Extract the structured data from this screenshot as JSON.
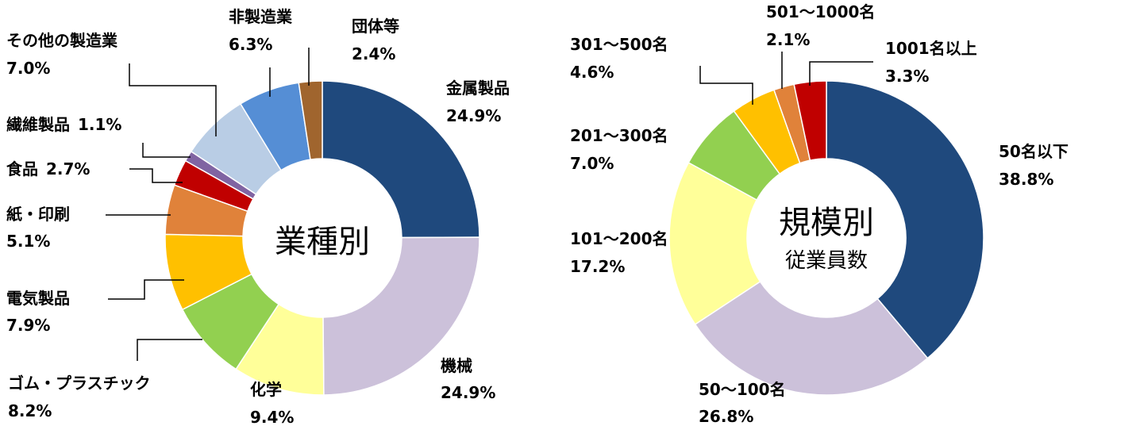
{
  "chart_data": [
    {
      "type": "pie",
      "title": "業種別",
      "subtitle": "",
      "categories": [
        "金属製品",
        "機械",
        "化学",
        "ゴム・プラスチック",
        "電気製品",
        "紙・印刷",
        "食品",
        "繊維製品",
        "その他の製造業",
        "非製造業",
        "団体等"
      ],
      "values": [
        24.9,
        24.9,
        9.4,
        8.2,
        7.9,
        5.1,
        2.7,
        1.1,
        7.0,
        6.3,
        2.4
      ],
      "value_labels": [
        "24.9%",
        "24.9%",
        "9.4%",
        "8.2%",
        "7.9%",
        "5.1%",
        "2.7%",
        "1.1%",
        "7.0%",
        "6.3%",
        "2.4%"
      ],
      "colors": [
        "#1F497D",
        "#CCC1DA",
        "#FFFF99",
        "#92D050",
        "#FFC000",
        "#E0823A",
        "#C00000",
        "#8064A2",
        "#B9CDE5",
        "#558ED5",
        "#A0652E"
      ],
      "donut": true,
      "legend": "none"
    },
    {
      "type": "pie",
      "title": "規模別",
      "subtitle": "従業員数",
      "categories": [
        "50名以下",
        "50～100名",
        "101～200名",
        "201～300名",
        "301～500名",
        "501～1000名",
        "1001名以上"
      ],
      "values": [
        38.8,
        26.8,
        17.2,
        7.0,
        4.6,
        2.1,
        3.3
      ],
      "value_labels": [
        "38.8%",
        "26.8%",
        "17.2%",
        "7.0%",
        "4.6%",
        "2.1%",
        "3.3%"
      ],
      "colors": [
        "#1F497D",
        "#CCC1DA",
        "#FFFF99",
        "#92D050",
        "#FFC000",
        "#E0823A",
        "#C00000"
      ],
      "donut": true,
      "legend": "none"
    }
  ]
}
